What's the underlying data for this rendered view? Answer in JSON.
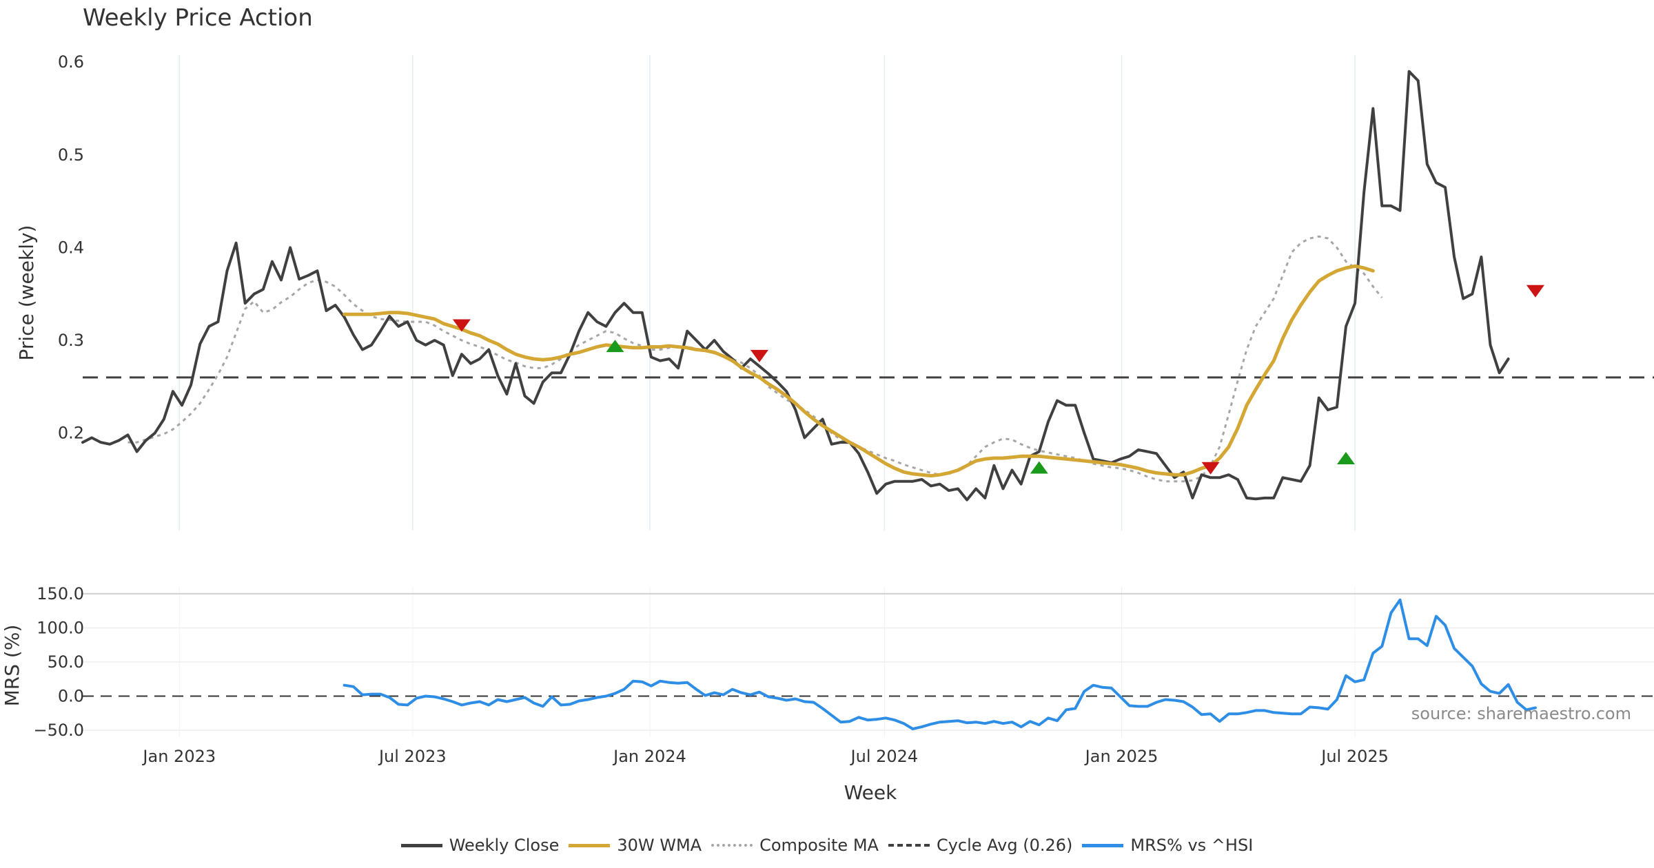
{
  "chart_data": {
    "title": "Weekly Price Action",
    "source_note": "source: sharemaestro.com",
    "xlabel": "Week",
    "x_ticks": [
      {
        "label": "Jan 2023",
        "date": "2023-01-01"
      },
      {
        "label": "Jul 2023",
        "date": "2023-07-01"
      },
      {
        "label": "Jan 2024",
        "date": "2024-01-01"
      },
      {
        "label": "Jul 2024",
        "date": "2024-07-01"
      },
      {
        "label": "Jan 2025",
        "date": "2025-01-01"
      },
      {
        "label": "Jul 2025",
        "date": "2025-07-01"
      }
    ],
    "x_range": [
      "2022-10-18",
      "2026-02-18"
    ],
    "top_panel": {
      "type": "line",
      "ylabel": "Price (weekly)",
      "ylim": [
        0.095,
        0.615
      ],
      "y_ticks": [
        "0.2",
        "0.3",
        "0.4",
        "0.5",
        "0.6"
      ],
      "cycle_avg": 0.26,
      "series": [
        {
          "name": "Weekly Close",
          "color": "#404040",
          "style": "solid",
          "start": "2022-10-18",
          "values": [
            0.19,
            0.195,
            0.19,
            0.188,
            0.192,
            0.198,
            0.18,
            0.192,
            0.2,
            0.215,
            0.245,
            0.23,
            0.252,
            0.296,
            0.315,
            0.32,
            0.375,
            0.405,
            0.34,
            0.35,
            0.355,
            0.385,
            0.365,
            0.4,
            0.366,
            0.37,
            0.375,
            0.332,
            0.338,
            0.325,
            0.306,
            0.29,
            0.295,
            0.31,
            0.326,
            0.315,
            0.32,
            0.3,
            0.295,
            0.3,
            0.295,
            0.262,
            0.285,
            0.275,
            0.28,
            0.29,
            0.262,
            0.242,
            0.275,
            0.24,
            0.232,
            0.255,
            0.265,
            0.265,
            0.285,
            0.31,
            0.33,
            0.32,
            0.315,
            0.33,
            0.34,
            0.33,
            0.33,
            0.282,
            0.278,
            0.28,
            0.27,
            0.31,
            0.3,
            0.29,
            0.3,
            0.288,
            0.28,
            0.27,
            0.28,
            0.272,
            0.264,
            0.255,
            0.245,
            0.225,
            0.195,
            0.205,
            0.215,
            0.188,
            0.19,
            0.19,
            0.178,
            0.158,
            0.135,
            0.145,
            0.148,
            0.148,
            0.148,
            0.15,
            0.143,
            0.145,
            0.138,
            0.14,
            0.128,
            0.14,
            0.13,
            0.165,
            0.14,
            0.16,
            0.145,
            0.175,
            0.18,
            0.212,
            0.235,
            0.23,
            0.23,
            0.2,
            0.172,
            0.17,
            0.168,
            0.172,
            0.175,
            0.182,
            0.18,
            0.178,
            0.165,
            0.152,
            0.158,
            0.13,
            0.155,
            0.152,
            0.152,
            0.155,
            0.15,
            0.13,
            0.129,
            0.13,
            0.13,
            0.152,
            0.15,
            0.148,
            0.165,
            0.238,
            0.225,
            0.228,
            0.315,
            0.34,
            0.46,
            0.55,
            0.445,
            0.445,
            0.44,
            0.59,
            0.58,
            0.49,
            0.47,
            0.465,
            0.39,
            0.345,
            0.35,
            0.39,
            0.295,
            0.265,
            0.28
          ]
        },
        {
          "name": "30W WMA",
          "color": "#d4a633",
          "style": "solid",
          "start": "2023-05-09",
          "values": [
            0.328,
            0.328,
            0.328,
            0.328,
            0.329,
            0.33,
            0.33,
            0.329,
            0.327,
            0.325,
            0.323,
            0.318,
            0.315,
            0.312,
            0.308,
            0.305,
            0.3,
            0.296,
            0.29,
            0.285,
            0.282,
            0.28,
            0.279,
            0.28,
            0.282,
            0.285,
            0.287,
            0.29,
            0.293,
            0.295,
            0.294,
            0.293,
            0.292,
            0.292,
            0.293,
            0.293,
            0.294,
            0.293,
            0.292,
            0.29,
            0.289,
            0.287,
            0.283,
            0.278,
            0.271,
            0.265,
            0.26,
            0.253,
            0.247,
            0.24,
            0.232,
            0.223,
            0.215,
            0.208,
            0.202,
            0.196,
            0.19,
            0.185,
            0.179,
            0.173,
            0.167,
            0.162,
            0.158,
            0.156,
            0.155,
            0.154,
            0.155,
            0.157,
            0.16,
            0.165,
            0.17,
            0.172,
            0.173,
            0.173,
            0.174,
            0.175,
            0.175,
            0.175,
            0.174,
            0.173,
            0.172,
            0.171,
            0.17,
            0.169,
            0.168,
            0.167,
            0.166,
            0.164,
            0.162,
            0.159,
            0.157,
            0.156,
            0.155,
            0.155,
            0.158,
            0.162,
            0.165,
            0.173,
            0.185,
            0.205,
            0.23,
            0.247,
            0.263,
            0.278,
            0.302,
            0.322,
            0.338,
            0.352,
            0.364,
            0.37,
            0.375,
            0.378,
            0.38,
            0.378,
            0.375
          ]
        },
        {
          "name": "Composite MA",
          "color": "#a6a6a6",
          "style": "dotted",
          "start": "2022-11-22",
          "values": [
            0.19,
            0.19,
            0.193,
            0.196,
            0.199,
            0.204,
            0.212,
            0.221,
            0.232,
            0.247,
            0.263,
            0.282,
            0.308,
            0.334,
            0.342,
            0.33,
            0.333,
            0.341,
            0.347,
            0.355,
            0.362,
            0.365,
            0.363,
            0.358,
            0.349,
            0.339,
            0.332,
            0.326,
            0.323,
            0.322,
            0.321,
            0.32,
            0.32,
            0.32,
            0.316,
            0.31,
            0.305,
            0.3,
            0.296,
            0.293,
            0.289,
            0.284,
            0.279,
            0.276,
            0.272,
            0.27,
            0.27,
            0.274,
            0.28,
            0.288,
            0.295,
            0.3,
            0.305,
            0.31,
            0.308,
            0.302,
            0.297,
            0.294,
            0.29,
            0.29,
            0.292,
            0.293,
            0.293,
            0.291,
            0.289,
            0.286,
            0.283,
            0.28,
            0.276,
            0.27,
            0.262,
            0.25,
            0.243,
            0.236,
            0.231,
            0.225,
            0.218,
            0.21,
            0.2,
            0.193,
            0.189,
            0.185,
            0.181,
            0.177,
            0.173,
            0.17,
            0.166,
            0.163,
            0.16,
            0.157,
            0.155,
            0.156,
            0.16,
            0.165,
            0.175,
            0.185,
            0.19,
            0.194,
            0.193,
            0.188,
            0.184,
            0.181,
            0.179,
            0.177,
            0.175,
            0.173,
            0.17,
            0.167,
            0.165,
            0.163,
            0.162,
            0.16,
            0.157,
            0.153,
            0.15,
            0.148,
            0.148,
            0.148,
            0.149,
            0.153,
            0.165,
            0.185,
            0.22,
            0.256,
            0.29,
            0.315,
            0.33,
            0.345,
            0.37,
            0.395,
            0.405,
            0.41,
            0.412,
            0.41,
            0.4,
            0.385,
            0.378,
            0.372,
            0.358,
            0.346
          ]
        }
      ],
      "signals": [
        {
          "type": "sell",
          "date": "2023-08-08",
          "value": 0.316
        },
        {
          "type": "buy",
          "date": "2023-12-05",
          "value": 0.294
        },
        {
          "type": "sell",
          "date": "2024-03-26",
          "value": 0.283
        },
        {
          "type": "buy",
          "date": "2024-10-29",
          "value": 0.163
        },
        {
          "type": "sell",
          "date": "2025-03-11",
          "value": 0.162
        },
        {
          "type": "buy",
          "date": "2025-06-24",
          "value": 0.173
        },
        {
          "type": "sell",
          "date": "2025-11-18",
          "value": 0.353
        }
      ]
    },
    "bottom_panel": {
      "type": "line",
      "ylabel": "MRS (%)",
      "ylim": [
        -60,
        160
      ],
      "y_ticks": [
        "−50.0",
        "0.0",
        "50.0",
        "100.0",
        "150.0"
      ],
      "series": [
        {
          "name": "MRS% vs ^HSI",
          "color": "#2e8ee6",
          "style": "solid",
          "start": "2023-05-09",
          "values": [
            16,
            14,
            2,
            3,
            3,
            -2,
            -12,
            -13,
            -3,
            0,
            -1,
            -4,
            -8,
            -13,
            -10,
            -8,
            -13,
            -5,
            -8,
            -5,
            -2,
            -10,
            -15,
            -1,
            -13,
            -12,
            -7,
            -5,
            -2,
            0,
            4,
            10,
            22,
            21,
            15,
            22,
            20,
            19,
            20,
            10,
            1,
            5,
            2,
            10,
            5,
            2,
            6,
            -1,
            -3,
            -6,
            -4,
            -8,
            -9,
            -18,
            -28,
            -38,
            -37,
            -31,
            -35,
            -34,
            -32,
            -35,
            -40,
            -48,
            -45,
            -41,
            -38,
            -37,
            -36,
            -39,
            -38,
            -40,
            -37,
            -40,
            -38,
            -45,
            -37,
            -42,
            -32,
            -36,
            -20,
            -18,
            7,
            16,
            13,
            12,
            -1,
            -14,
            -15,
            -15,
            -9,
            -5,
            -6,
            -8,
            -16,
            -27,
            -26,
            -37,
            -26,
            -26,
            -24,
            -21,
            -21,
            -24,
            -25,
            -26,
            -26,
            -16,
            -17,
            -19,
            -5,
            30,
            21,
            24,
            63,
            73,
            122,
            141,
            84,
            84,
            74,
            117,
            104,
            70,
            57,
            44,
            18,
            7,
            4,
            17,
            -9,
            -20,
            -17
          ]
        }
      ]
    },
    "legend": [
      {
        "label": "Weekly Close",
        "color": "#404040",
        "style": "solid"
      },
      {
        "label": "30W WMA",
        "color": "#d4a633",
        "style": "solid"
      },
      {
        "label": "Composite MA",
        "color": "#a6a6a6",
        "style": "dotted"
      },
      {
        "label": "Cycle Avg (0.26)",
        "color": "#404040",
        "style": "dashed"
      },
      {
        "label": "MRS% vs ^HSI",
        "color": "#2e8ee6",
        "style": "solid"
      }
    ]
  }
}
